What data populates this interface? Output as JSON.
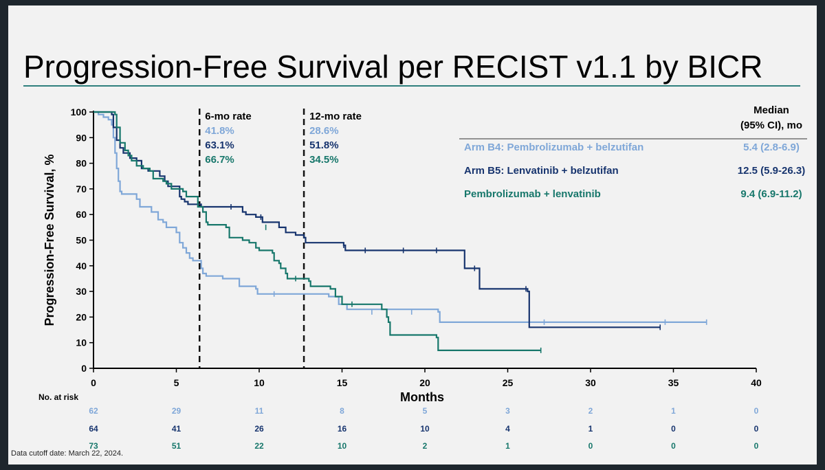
{
  "title": "Progression-Free Survival per RECIST v1.1 by BICR",
  "footnote": "Data cutoff date: March 22, 2024.",
  "colors": {
    "b4": "#7fa7d8",
    "b5": "#17346e",
    "pl": "#17776b",
    "text": "#000000"
  },
  "chart_data": {
    "type": "line",
    "step": true,
    "xlabel": "Months",
    "ylabel": "Progression-Free Survival, %",
    "xlim": [
      0,
      40
    ],
    "ylim": [
      0,
      100
    ],
    "xticks": [
      0,
      5,
      10,
      15,
      20,
      25,
      30,
      35,
      40
    ],
    "yticks": [
      0,
      10,
      20,
      30,
      40,
      50,
      60,
      70,
      80,
      90,
      100
    ],
    "vlines": [
      {
        "x": 6.4,
        "label": "6-mo rate",
        "values": [
          "41.8%",
          "63.1%",
          "66.7%"
        ]
      },
      {
        "x": 12.7,
        "label": "12-mo rate",
        "values": [
          "28.6%",
          "51.8%",
          "34.5%"
        ]
      }
    ],
    "legend": {
      "header": [
        "Median",
        "(95% CI), mo"
      ],
      "position": "top-right",
      "entries": [
        {
          "label": "Arm B4: Pembrolizumab + belzutifan",
          "median": "5.4 (2.8-6.9)"
        },
        {
          "label": "Arm B5: Lenvatinib + belzutifan",
          "median": "12.5 (5.9-26.3)"
        },
        {
          "label": "Pembrolizumab + lenvatinib",
          "median": "9.4 (6.9-11.2)"
        }
      ]
    },
    "series": [
      {
        "name": "Arm B4: Pembrolizumab + belzutifan",
        "points": [
          [
            0,
            100
          ],
          [
            0.3,
            99
          ],
          [
            0.6,
            98
          ],
          [
            0.9,
            97
          ],
          [
            1.1,
            95
          ],
          [
            1.2,
            90
          ],
          [
            1.3,
            84
          ],
          [
            1.4,
            78
          ],
          [
            1.5,
            73
          ],
          [
            1.6,
            69
          ],
          [
            1.7,
            68
          ],
          [
            2.6,
            66
          ],
          [
            2.8,
            63
          ],
          [
            3.5,
            61
          ],
          [
            3.9,
            58
          ],
          [
            4.2,
            57
          ],
          [
            4.4,
            55
          ],
          [
            5.0,
            53
          ],
          [
            5.2,
            49
          ],
          [
            5.4,
            47
          ],
          [
            5.6,
            45
          ],
          [
            5.8,
            43
          ],
          [
            6.0,
            42
          ],
          [
            6.5,
            39
          ],
          [
            6.6,
            37
          ],
          [
            6.8,
            36
          ],
          [
            7.8,
            35
          ],
          [
            8.8,
            32
          ],
          [
            9.8,
            31
          ],
          [
            9.9,
            29
          ],
          [
            14.2,
            28
          ],
          [
            14.8,
            25
          ],
          [
            15.3,
            23
          ],
          [
            20.8,
            22
          ],
          [
            20.9,
            21
          ],
          [
            20.9,
            18
          ],
          [
            37.0,
            18
          ]
        ],
        "censor": [
          [
            10.9,
            29
          ],
          [
            16.8,
            22
          ],
          [
            19.2,
            22
          ],
          [
            27.2,
            18
          ],
          [
            34.5,
            18
          ],
          [
            37.0,
            18
          ]
        ]
      },
      {
        "name": "Arm B5: Lenvatinib + belzutifan",
        "points": [
          [
            0,
            100
          ],
          [
            1.1,
            99
          ],
          [
            1.2,
            94
          ],
          [
            1.4,
            89
          ],
          [
            1.6,
            86
          ],
          [
            1.8,
            84
          ],
          [
            2.2,
            82
          ],
          [
            2.6,
            81
          ],
          [
            2.9,
            78
          ],
          [
            3.3,
            77
          ],
          [
            4.0,
            75
          ],
          [
            4.3,
            73
          ],
          [
            4.5,
            71
          ],
          [
            5.2,
            67
          ],
          [
            5.3,
            66
          ],
          [
            5.5,
            65
          ],
          [
            5.7,
            64
          ],
          [
            6.5,
            63
          ],
          [
            9.0,
            61
          ],
          [
            9.2,
            60
          ],
          [
            9.8,
            59
          ],
          [
            10.2,
            57
          ],
          [
            11.2,
            55
          ],
          [
            11.6,
            53
          ],
          [
            12.2,
            52
          ],
          [
            12.7,
            51
          ],
          [
            12.8,
            49
          ],
          [
            15.1,
            48
          ],
          [
            15.2,
            46
          ],
          [
            22.4,
            44
          ],
          [
            22.4,
            39
          ],
          [
            23.3,
            38
          ],
          [
            23.3,
            31
          ],
          [
            26.2,
            30
          ],
          [
            26.3,
            16
          ],
          [
            34.2,
            16
          ]
        ],
        "censor": [
          [
            8.3,
            63
          ],
          [
            10.1,
            59
          ],
          [
            15.1,
            48
          ],
          [
            16.4,
            46
          ],
          [
            18.7,
            46
          ],
          [
            20.7,
            46
          ],
          [
            23.0,
            39
          ],
          [
            26.1,
            31
          ],
          [
            34.2,
            16
          ]
        ]
      },
      {
        "name": "Pembrolizumab + lenvatinib",
        "points": [
          [
            0,
            100
          ],
          [
            1.3,
            99
          ],
          [
            1.4,
            94
          ],
          [
            1.6,
            88
          ],
          [
            1.9,
            85
          ],
          [
            2.1,
            83
          ],
          [
            2.3,
            81
          ],
          [
            2.6,
            79
          ],
          [
            3.0,
            78
          ],
          [
            3.4,
            77
          ],
          [
            3.6,
            74
          ],
          [
            4.2,
            73
          ],
          [
            4.4,
            72
          ],
          [
            4.7,
            70
          ],
          [
            5.4,
            69
          ],
          [
            5.6,
            67
          ],
          [
            6.3,
            63
          ],
          [
            6.6,
            61
          ],
          [
            6.8,
            57
          ],
          [
            6.9,
            56
          ],
          [
            8.0,
            55
          ],
          [
            8.2,
            51
          ],
          [
            9.0,
            50
          ],
          [
            9.4,
            49
          ],
          [
            9.8,
            47
          ],
          [
            10.0,
            46
          ],
          [
            10.8,
            45
          ],
          [
            10.9,
            42
          ],
          [
            11.2,
            41
          ],
          [
            11.3,
            39
          ],
          [
            11.6,
            37
          ],
          [
            11.7,
            35
          ],
          [
            13.0,
            34
          ],
          [
            13.1,
            32
          ],
          [
            14.3,
            31
          ],
          [
            14.6,
            28
          ],
          [
            15.0,
            25
          ],
          [
            17.4,
            23
          ],
          [
            17.7,
            20
          ],
          [
            17.8,
            18
          ],
          [
            17.9,
            13
          ],
          [
            20.7,
            12
          ],
          [
            20.8,
            7
          ],
          [
            27.0,
            7
          ]
        ],
        "censor": [
          [
            10.4,
            55
          ],
          [
            12.2,
            35
          ],
          [
            15.6,
            25
          ],
          [
            27.0,
            7
          ]
        ]
      }
    ],
    "risk_table": {
      "label": "No. at risk",
      "times": [
        0,
        5,
        10,
        15,
        20,
        25,
        30,
        35,
        40
      ],
      "rows": [
        [
          62,
          29,
          11,
          8,
          5,
          3,
          2,
          1,
          0
        ],
        [
          64,
          41,
          26,
          16,
          10,
          4,
          1,
          0,
          0
        ],
        [
          73,
          51,
          22,
          10,
          2,
          1,
          0,
          0,
          0
        ]
      ]
    }
  }
}
